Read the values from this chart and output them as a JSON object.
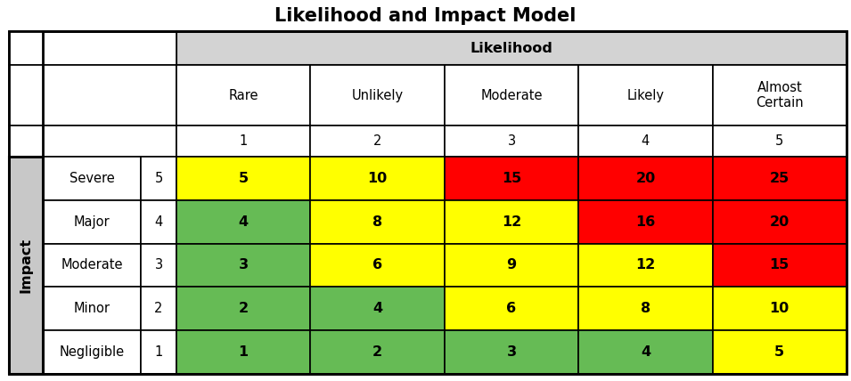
{
  "title": "Likelihood and Impact Model",
  "likelihood_label": "Likelihood",
  "impact_label": "Impact",
  "likelihood_cols": [
    "Rare",
    "Unlikely",
    "Moderate",
    "Likely",
    "Almost\nCertain"
  ],
  "likelihood_nums": [
    "1",
    "2",
    "3",
    "4",
    "5"
  ],
  "impact_rows": [
    "Severe",
    "Major",
    "Moderate",
    "Minor",
    "Negligible"
  ],
  "impact_nums": [
    "5",
    "4",
    "3",
    "2",
    "1"
  ],
  "values": [
    [
      5,
      10,
      15,
      20,
      25
    ],
    [
      4,
      8,
      12,
      16,
      20
    ],
    [
      3,
      6,
      9,
      12,
      15
    ],
    [
      2,
      4,
      6,
      8,
      10
    ],
    [
      1,
      2,
      3,
      4,
      5
    ]
  ],
  "cell_colors": [
    [
      "#FFFF00",
      "#FFFF00",
      "#FF0000",
      "#FF0000",
      "#FF0000"
    ],
    [
      "#66BB55",
      "#FFFF00",
      "#FFFF00",
      "#FF0000",
      "#FF0000"
    ],
    [
      "#66BB55",
      "#FFFF00",
      "#FFFF00",
      "#FFFF00",
      "#FF0000"
    ],
    [
      "#66BB55",
      "#66BB55",
      "#FFFF00",
      "#FFFF00",
      "#FFFF00"
    ],
    [
      "#66BB55",
      "#66BB55",
      "#66BB55",
      "#66BB55",
      "#FFFF00"
    ]
  ],
  "header_bg": "#D3D3D3",
  "white_bg": "#FFFFFF",
  "impact_gray": "#C8C8C8",
  "title_fontsize": 15,
  "header_fontsize": 10.5,
  "cell_fontsize": 11.5,
  "impact_label_fontsize": 11.5
}
